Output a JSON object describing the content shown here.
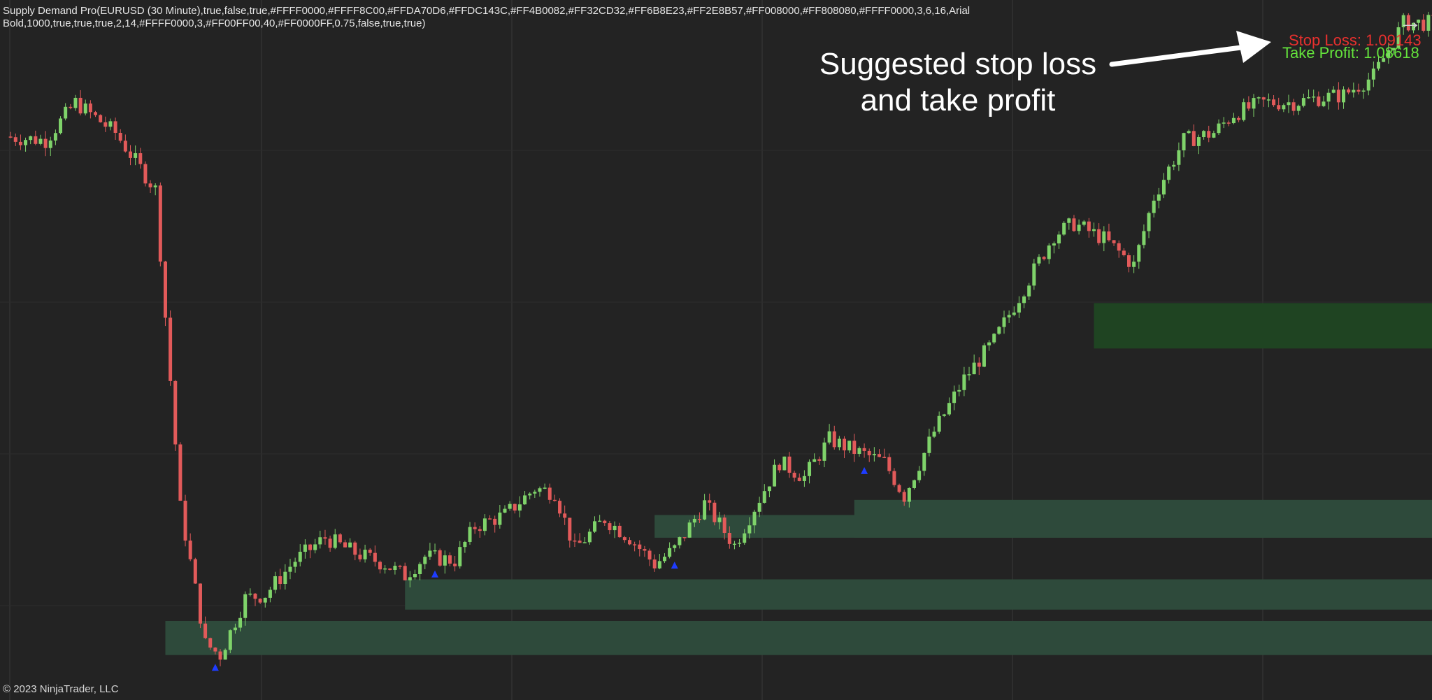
{
  "indicator": {
    "line1": "Supply Demand Pro(EURUSD (30 Minute),true,false,true,#FFFF0000,#FFFF8C00,#FFDA70D6,#FFDC143C,#FF4B0082,#FF32CD32,#FF6B8E23,#FF2E8B57,#FF008000,#FF808080,#FFFF0000,3,6,16,Arial",
    "line2": "Bold,1000,true,true,true,2,14,#FFFF0000,3,#FF00FF00,40,#FF0000FF,0.75,false,true,true)"
  },
  "copyright": "© 2023 NinjaTrader, LLC",
  "annotation": {
    "line1": "Suggested stop loss",
    "line2": "and take profit"
  },
  "stop_loss": {
    "label": "Stop Loss: 1.09143",
    "color": "#e8302e"
  },
  "take_profit": {
    "label": "Take Profit: 1.08618",
    "color": "#64e33c"
  },
  "nav": {
    "icon": "arrow-right-icon",
    "glyph": "→"
  },
  "colors": {
    "background": "#232323",
    "up_candle": "#7fd36a",
    "down_candle": "#e25a5a",
    "zone_demand": "#2e4a3b",
    "zone_supply": "#1f4422",
    "signal": "#1e3cff",
    "gridline": "#3a3a3a"
  },
  "chart_data": {
    "type": "candlestick",
    "symbol": "EURUSD",
    "timeframe": "30 Minute",
    "grid": true,
    "close_path": [
      [
        0,
        1.09
      ],
      [
        8,
        1.0899
      ],
      [
        14,
        1.0909
      ],
      [
        22,
        1.0901
      ],
      [
        30,
        1.0886
      ],
      [
        35,
        1.0802
      ],
      [
        40,
        1.0766
      ],
      [
        43,
        1.0763
      ],
      [
        48,
        1.0778
      ],
      [
        52,
        1.0779
      ],
      [
        58,
        1.0788
      ],
      [
        64,
        1.0794
      ],
      [
        70,
        1.079
      ],
      [
        76,
        1.0787
      ],
      [
        80,
        1.0784
      ],
      [
        84,
        1.0789
      ],
      [
        90,
        1.0788
      ],
      [
        94,
        1.0797
      ],
      [
        100,
        1.08
      ],
      [
        106,
        1.0807
      ],
      [
        110,
        1.0806
      ],
      [
        114,
        1.0791
      ],
      [
        120,
        1.0799
      ],
      [
        125,
        1.0794
      ],
      [
        130,
        1.0787
      ],
      [
        134,
        1.0791
      ],
      [
        140,
        1.0803
      ],
      [
        146,
        1.0792
      ],
      [
        150,
        1.0802
      ],
      [
        155,
        1.0814
      ],
      [
        160,
        1.081
      ],
      [
        165,
        1.082
      ],
      [
        170,
        1.0817
      ],
      [
        176,
        1.0814
      ],
      [
        180,
        1.0805
      ],
      [
        186,
        1.0822
      ],
      [
        192,
        1.0836
      ],
      [
        198,
        1.0846
      ],
      [
        204,
        1.086
      ],
      [
        210,
        1.0874
      ],
      [
        214,
        1.0877
      ],
      [
        220,
        1.0873
      ],
      [
        226,
        1.0866
      ],
      [
        230,
        1.0884
      ],
      [
        236,
        1.0899
      ],
      [
        242,
        1.0901
      ],
      [
        246,
        1.0906
      ],
      [
        252,
        1.0909
      ],
      [
        258,
        1.0909
      ],
      [
        262,
        1.091
      ],
      [
        268,
        1.0911
      ],
      [
        274,
        1.0916
      ],
      [
        280,
        1.093
      ]
    ],
    "demand_zones": [
      {
        "start_bar": 32,
        "top": 1.0772,
        "bottom": 1.0763
      },
      {
        "start_bar": 80,
        "top": 1.0783,
        "bottom": 1.0775
      },
      {
        "start_bar": 130,
        "top": 1.08,
        "bottom": 1.0794
      },
      {
        "start_bar": 170,
        "top": 1.0804,
        "bottom": 1.0794
      }
    ],
    "supply_zones": [
      {
        "start_bar": 218,
        "top": 1.0856,
        "bottom": 1.0844
      }
    ],
    "signals": [
      42,
      86,
      134,
      172
    ],
    "stop_loss": 1.09143,
    "take_profit": 1.08618
  }
}
